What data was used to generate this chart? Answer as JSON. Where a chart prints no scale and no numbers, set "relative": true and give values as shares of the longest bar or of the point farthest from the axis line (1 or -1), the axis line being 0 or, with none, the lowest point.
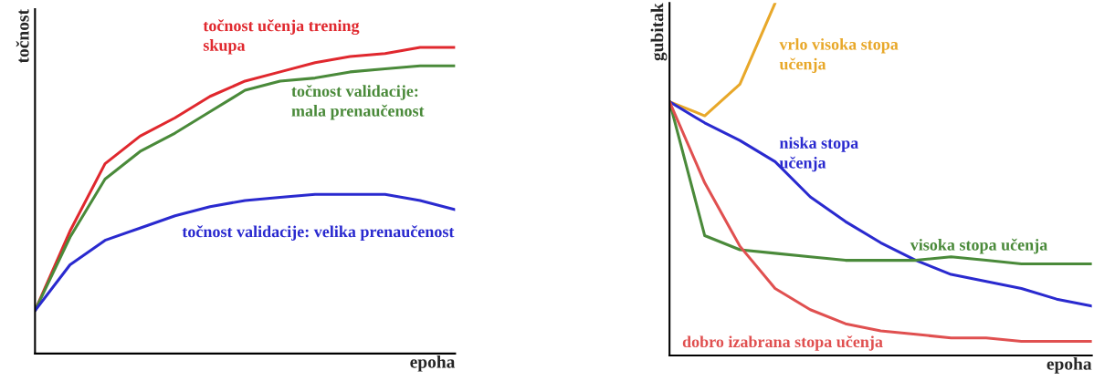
{
  "chart_data": [
    {
      "type": "line",
      "relative": true,
      "xlabel": "epoha",
      "ylabel": "točnost",
      "legend": false,
      "grid": false,
      "categories": [
        null,
        null,
        null,
        null,
        null,
        null,
        null,
        null,
        null,
        null,
        null,
        null,
        null
      ],
      "series": [
        {
          "name": "točnost učenja trening\nskupa",
          "color": "#e0282e",
          "values": [
            0.14,
            0.4,
            0.62,
            0.71,
            0.77,
            0.84,
            0.89,
            0.92,
            0.95,
            0.97,
            0.98,
            1.0,
            1.0
          ]
        },
        {
          "name": "točnost validacije:\nmala prenaučenost",
          "color": "#4a8a3a",
          "values": [
            0.14,
            0.38,
            0.57,
            0.66,
            0.72,
            0.79,
            0.86,
            0.89,
            0.9,
            0.92,
            0.93,
            0.94,
            0.94
          ]
        },
        {
          "name": "točnost validacije: velika prenaučenost",
          "color": "#2a2acf",
          "values": [
            0.14,
            0.29,
            0.37,
            0.41,
            0.45,
            0.48,
            0.5,
            0.51,
            0.52,
            0.52,
            0.52,
            0.5,
            0.47
          ]
        }
      ]
    },
    {
      "type": "line",
      "relative": true,
      "xlabel": "epoha",
      "ylabel": "gubitak",
      "legend": false,
      "grid": false,
      "categories": [
        null,
        null,
        null,
        null,
        null,
        null,
        null,
        null,
        null,
        null,
        null,
        null,
        null
      ],
      "series": [
        {
          "name": "vrlo visoka stopa\nučenja",
          "color": "#e8a82a",
          "values": [
            0.72,
            0.68,
            0.77,
            1.0,
            null,
            null,
            null,
            null,
            null,
            null,
            null,
            null,
            null
          ]
        },
        {
          "name": "niska stopa\nučenja",
          "color": "#2a2acf",
          "values": [
            0.72,
            0.66,
            0.61,
            0.55,
            0.45,
            0.38,
            0.32,
            0.27,
            0.23,
            0.21,
            0.19,
            0.16,
            0.14
          ]
        },
        {
          "name": "visoka stopa učenja",
          "color": "#4a8a3a",
          "values": [
            0.72,
            0.34,
            0.3,
            0.29,
            0.28,
            0.27,
            0.27,
            0.27,
            0.28,
            0.27,
            0.26,
            0.26,
            0.26
          ]
        },
        {
          "name": "dobro izabrana stopa učenja",
          "color": "#e05050",
          "values": [
            0.72,
            0.49,
            0.31,
            0.19,
            0.13,
            0.09,
            0.07,
            0.06,
            0.05,
            0.05,
            0.04,
            0.04,
            0.04
          ]
        }
      ]
    }
  ]
}
